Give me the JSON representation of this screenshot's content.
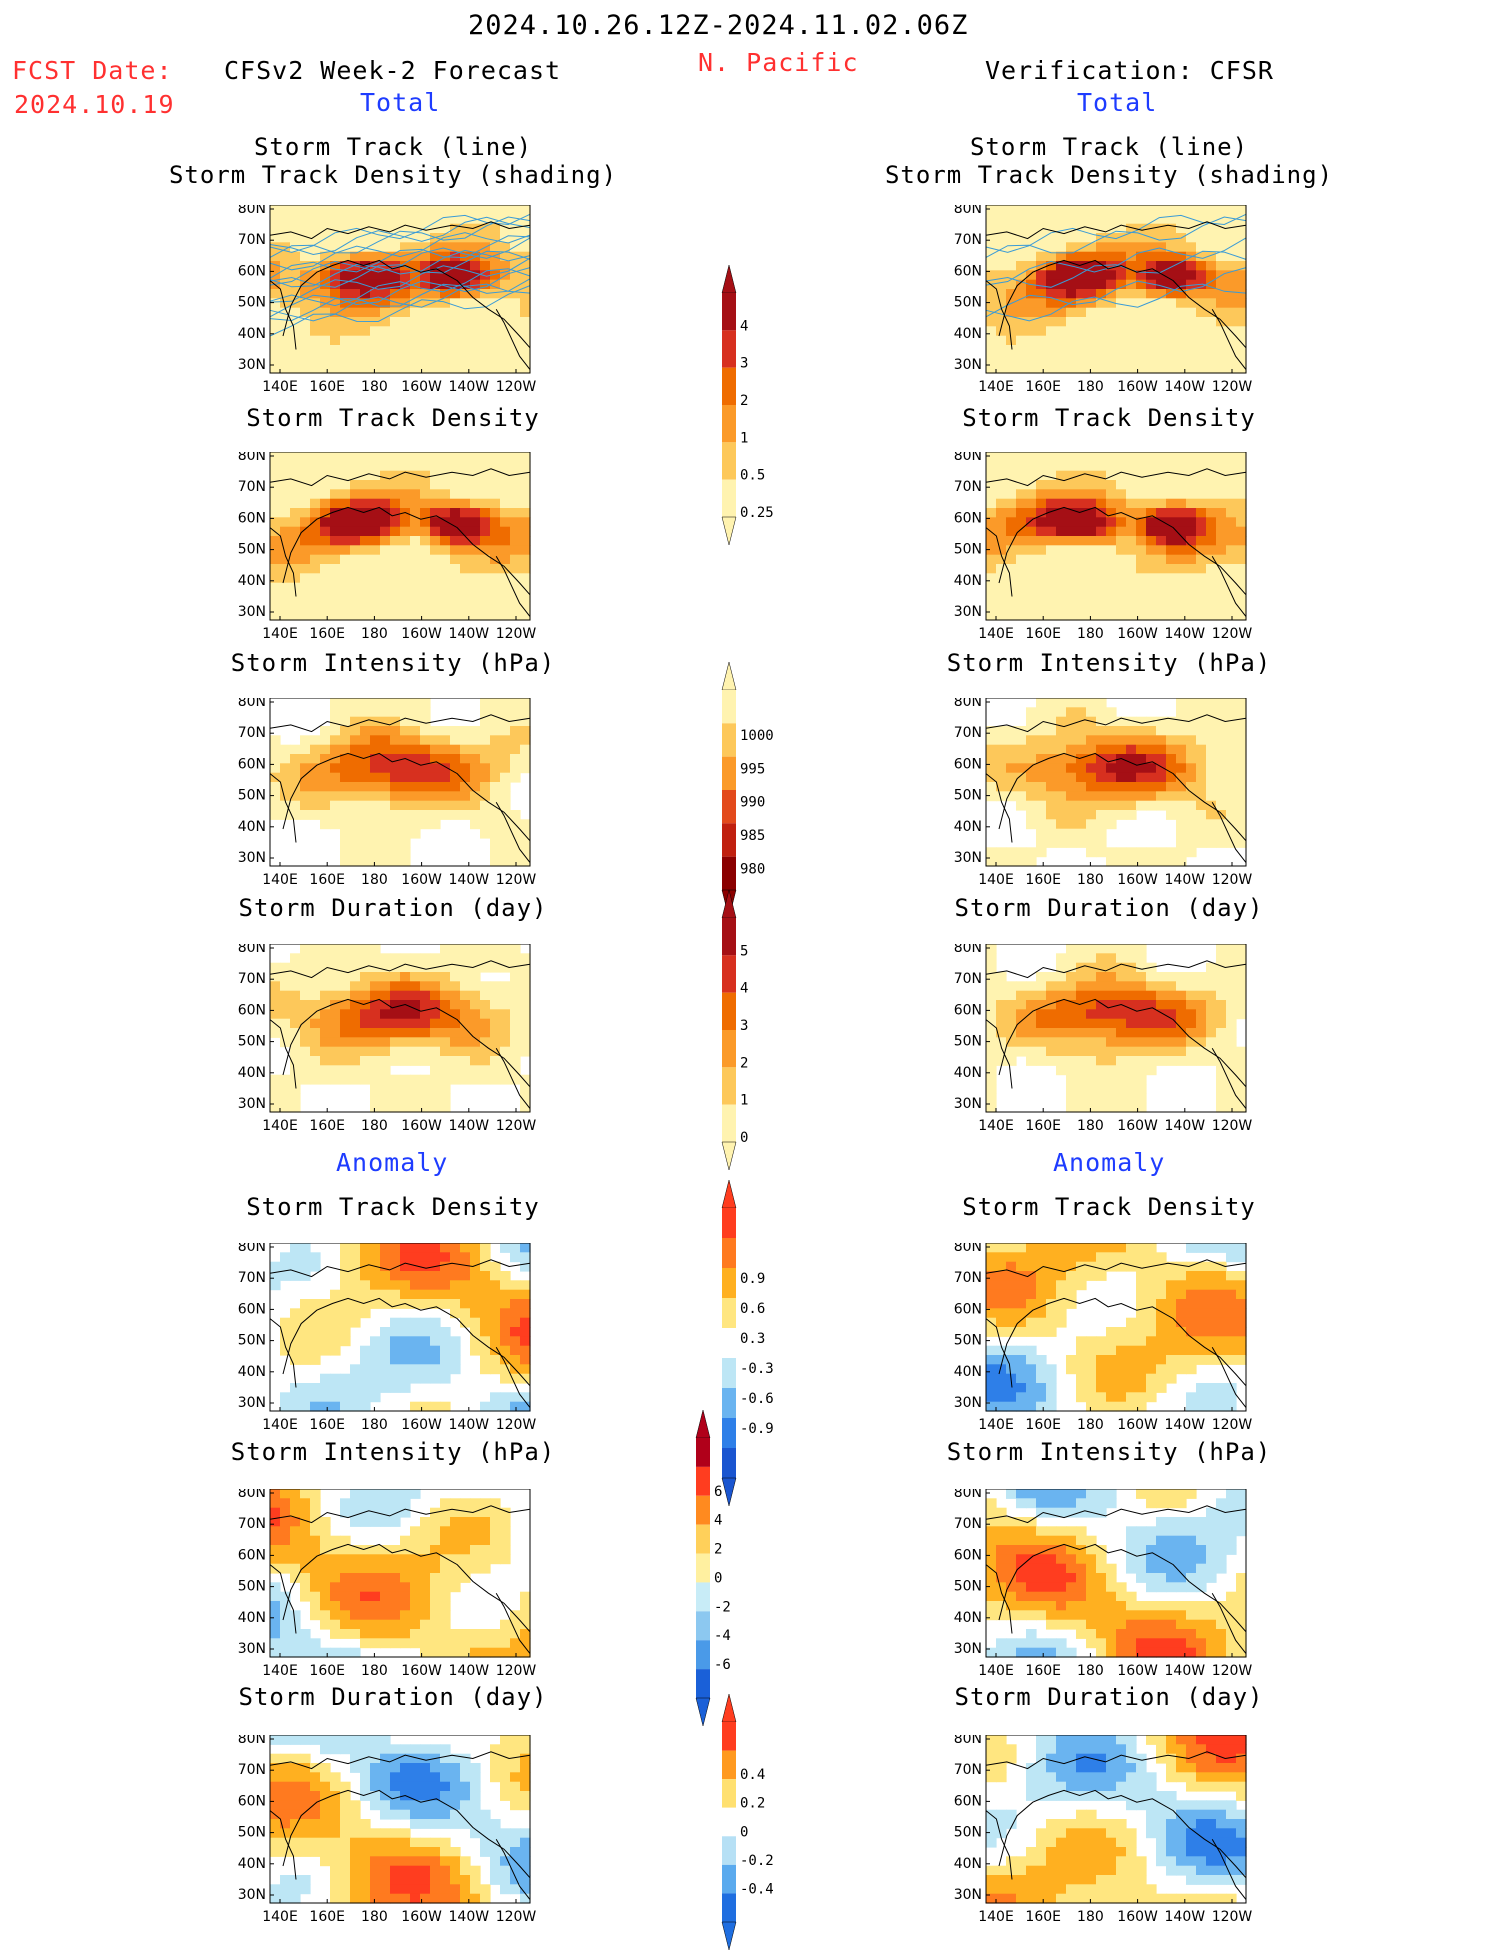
{
  "header": {
    "period": "2024.10.26.12Z-2024.11.02.06Z",
    "fcst_label": "FCST Date:",
    "fcst_date": "2024.10.19",
    "forecast_title": "CFSv2 Week-2 Forecast",
    "region": "N. Pacific",
    "verification_title": "Verification: CFSR",
    "total_left": "Total",
    "total_right": "Total",
    "anomaly_left": "Anomaly",
    "anomaly_right": "Anomaly"
  },
  "map_axes": {
    "lon_ticks": [
      "140E",
      "160E",
      "180",
      "160W",
      "140W",
      "120W"
    ],
    "lat_ticks": [
      "80N",
      "70N",
      "60N",
      "50N",
      "40N",
      "30N"
    ]
  },
  "panels": {
    "left": [
      {
        "title": "Storm Track (line)\nStorm Track Density (shading)",
        "title1": "Storm Track (line)",
        "title2": "Storm Track Density (shading)"
      },
      {
        "title1": "Storm Track Density"
      },
      {
        "title1": "Storm Intensity (hPa)"
      },
      {
        "title1": "Storm Duration (day)"
      },
      {
        "title1": "Storm Track Density"
      },
      {
        "title1": "Storm Intensity (hPa)"
      },
      {
        "title1": "Storm Duration (day)"
      }
    ],
    "right": [
      {
        "title1": "Storm Track (line)",
        "title2": "Storm Track Density (shading)"
      },
      {
        "title1": "Storm Track Density"
      },
      {
        "title1": "Storm Intensity (hPa)"
      },
      {
        "title1": "Storm Duration (day)"
      },
      {
        "title1": "Storm Track Density"
      },
      {
        "title1": "Storm Intensity (hPa)"
      },
      {
        "title1": "Storm Duration (day)"
      }
    ]
  },
  "colorbars": {
    "density": {
      "labels": [
        "4",
        "3",
        "2",
        "1",
        "0.5",
        "0.25"
      ],
      "colors": [
        "#a50f15",
        "#d7301f",
        "#ef6c00",
        "#fb9a29",
        "#fdc85a",
        "#fff3b0"
      ]
    },
    "intensity": {
      "labels": [
        "1000",
        "995",
        "990",
        "985",
        "980"
      ],
      "colors": [
        "#fff3b0",
        "#fdc85a",
        "#fb9a29",
        "#e34a1c",
        "#c0200f",
        "#8b0000"
      ]
    },
    "duration": {
      "labels": [
        "5",
        "4",
        "3",
        "2",
        "1",
        "0"
      ],
      "colors": [
        "#a50f15",
        "#d7301f",
        "#ef6c00",
        "#fb9a29",
        "#fdc85a",
        "#fff3b0"
      ]
    },
    "anom_density": {
      "labels": [
        "0.9",
        "0.6",
        "0.3",
        "-0.3",
        "-0.6",
        "-0.9"
      ],
      "colors": [
        "#ff3d1f",
        "#ff7a1f",
        "#ffb020",
        "#ffe680",
        "#ffffff",
        "#bde6f5",
        "#6ab4f0",
        "#2e7fe8",
        "#1a55d0"
      ]
    },
    "anom_intensity": {
      "labels": [
        "6",
        "4",
        "2",
        "0",
        "-2",
        "-4",
        "-6"
      ],
      "colors": [
        "#b0001a",
        "#ff3d1f",
        "#ff8a1f",
        "#ffd05a",
        "#fff0a0",
        "#c8ecf7",
        "#8cc8f0",
        "#4a9ae8",
        "#1a60d8"
      ]
    },
    "anom_duration": {
      "labels": [
        "0.4",
        "0.2",
        "0",
        "-0.2",
        "-0.4"
      ],
      "colors": [
        "#ff3d1f",
        "#ff9a20",
        "#ffe070",
        "#ffffff",
        "#b6e0f5",
        "#5aaaee",
        "#1f6ee0"
      ]
    }
  }
}
